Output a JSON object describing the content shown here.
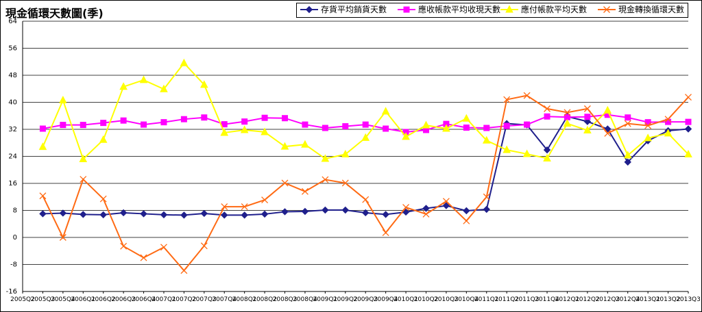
{
  "chart_data": {
    "type": "line",
    "title": "現金循環天數圖(季)",
    "xlabel": "",
    "ylabel": "",
    "ylim": [
      -16,
      64
    ],
    "yticks": [
      -16,
      -8,
      0,
      8,
      16,
      24,
      32,
      40,
      48,
      56,
      64
    ],
    "grid": true,
    "legend_position": "top-right",
    "categories": [
      "2005Q2",
      "2005Q3",
      "2005Q4",
      "2006Q1",
      "2006Q2",
      "2006Q3",
      "2006Q4",
      "2007Q1",
      "2007Q2",
      "2007Q3",
      "2007Q4",
      "2008Q1",
      "2008Q2",
      "2008Q3",
      "2008Q4",
      "2009Q1",
      "2009Q2",
      "2009Q3",
      "2009Q4",
      "2010Q1",
      "2010Q2",
      "2010Q3",
      "2010Q4",
      "2011Q1",
      "2011Q2",
      "2011Q3",
      "2011Q4",
      "2012Q1",
      "2012Q2",
      "2012Q3",
      "2012Q4",
      "2013Q1",
      "2013Q2",
      "2013Q3"
    ],
    "series": [
      {
        "name": "存貨平均銷貨天數",
        "color": "#1f1f8c",
        "marker": "diamond",
        "values": [
          null,
          7.0,
          7.2,
          6.8,
          6.7,
          7.3,
          7.0,
          6.7,
          6.6,
          7.1,
          6.6,
          6.6,
          6.9,
          7.6,
          7.7,
          8.1,
          8.1,
          7.3,
          6.8,
          7.5,
          8.6,
          9.4,
          7.9,
          8.3,
          33.7,
          33.3,
          25.9,
          35.8,
          34.3,
          32.1,
          22.3,
          28.6,
          31.6,
          32.1
        ]
      },
      {
        "name": "應收帳款平均收現天數",
        "color": "#ff00ff",
        "marker": "square",
        "values": [
          null,
          32.2,
          33.3,
          33.3,
          33.9,
          34.6,
          33.4,
          34.1,
          35.0,
          35.5,
          33.5,
          34.3,
          35.4,
          35.3,
          33.4,
          32.4,
          32.9,
          33.4,
          32.2,
          31.2,
          31.8,
          33.6,
          32.5,
          32.4,
          33.0,
          33.4,
          35.8,
          35.6,
          35.7,
          36.3,
          35.5,
          34.1,
          34.2,
          34.2
        ]
      },
      {
        "name": "應付帳款平均天數",
        "color": "#ffff00",
        "marker": "triangle",
        "values": [
          null,
          26.8,
          40.6,
          23.2,
          28.9,
          44.6,
          46.6,
          43.9,
          51.6,
          45.2,
          31.0,
          31.8,
          31.2,
          26.9,
          27.5,
          23.3,
          24.6,
          29.5,
          37.3,
          29.8,
          33.2,
          32.2,
          35.2,
          28.7,
          25.9,
          24.7,
          23.4,
          33.7,
          31.7,
          37.6,
          24.3,
          29.4,
          30.8,
          24.6
        ]
      },
      {
        "name": "現金轉換循環天數",
        "color": "#ff6a13",
        "marker": "x",
        "values": [
          null,
          12.3,
          0.0,
          17.2,
          11.4,
          -2.6,
          -6.0,
          -2.9,
          -9.8,
          -2.5,
          9.1,
          9.1,
          11.1,
          16.1,
          13.6,
          17.1,
          16.1,
          11.2,
          1.4,
          8.9,
          6.9,
          10.7,
          4.9,
          12.0,
          40.8,
          42.0,
          38.1,
          37.0,
          38.1,
          30.8,
          33.7,
          33.1,
          35.0,
          41.5
        ]
      }
    ]
  }
}
